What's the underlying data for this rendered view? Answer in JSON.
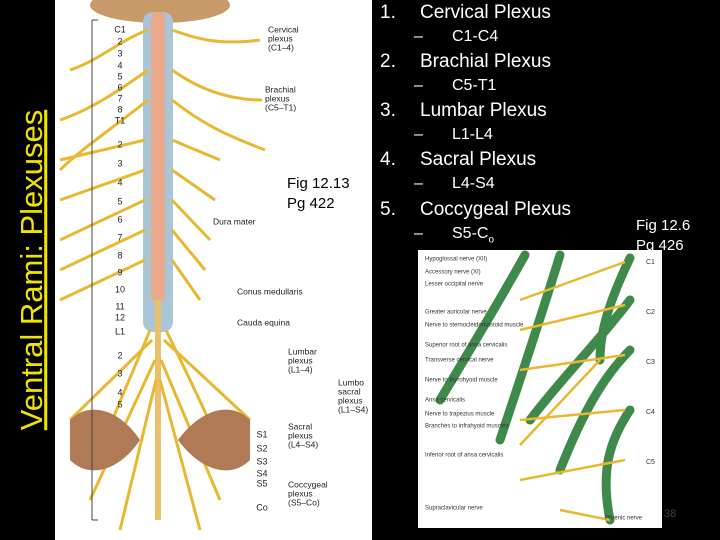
{
  "title": "Ventral Rami: Plexuses",
  "plexuses": [
    {
      "number": "1.",
      "name": "Cervical Plexus",
      "dash": "–",
      "range": "C1-C4"
    },
    {
      "number": "2.",
      "name": "Brachial Plexus",
      "dash": "–",
      "range": "C5-T1"
    },
    {
      "number": "3.",
      "name": "Lumbar Plexus",
      "dash": "–",
      "range": "L1-L4"
    },
    {
      "number": "4.",
      "name": "Sacral Plexus",
      "dash": "–",
      "range": "L4-S4"
    },
    {
      "number": "5.",
      "name": "Coccygeal Plexus",
      "dash": "–",
      "range": "S5-C",
      "range_subscript": "o"
    }
  ],
  "figures": [
    {
      "caption": "Fig 12.13",
      "page": "Pg 422"
    },
    {
      "caption": "Fig 12.6",
      "page": "Pg 426"
    }
  ],
  "left_image": {
    "vertebrae": [
      "C1",
      "2",
      "3",
      "4",
      "5",
      "6",
      "7",
      "8",
      "T1",
      "2",
      "3",
      "4",
      "5",
      "6",
      "7",
      "8",
      "9",
      "10",
      "11",
      "12",
      "L1",
      "2",
      "3",
      "4",
      "5",
      "S1",
      "S2",
      "S3",
      "S4",
      "S5",
      "Co"
    ],
    "labels": [
      [
        "Cervical",
        "plexus",
        "(C1–4)"
      ],
      [
        "Brachial",
        "plexus",
        "(C5–T1)"
      ],
      [
        "Dura mater"
      ],
      [
        "Conus medullaris"
      ],
      [
        "Cauda equina"
      ],
      [
        "Lumbar",
        "plexus",
        "(L1–4)"
      ],
      [
        "Lumbo",
        "sacral",
        "plexus",
        "(L1–S4)"
      ],
      [
        "Sacral",
        "plexus",
        "(L4–S4)"
      ],
      [
        "Coccygeal",
        "plexus",
        "(S5–Co)"
      ]
    ]
  },
  "right_image": {
    "levels": [
      "C1",
      "C2",
      "C3",
      "C4",
      "C5"
    ],
    "labels": [
      "Hypoglossal nerve (XII)",
      "Accessory nerve (XI)",
      "Lesser occipital nerve",
      "Greater auricular nerve",
      "Nerve to sternocleidomastoid muscle",
      "Superior root of ansa cervicalis",
      "Transverse cervical nerve",
      "Nerve to thyrohyoid muscle",
      "Ansa cervicalis",
      "Nerve to trapezius muscle",
      "Branches to infrahyoid muscles",
      "Inferior root of ansa cervicalis",
      "Supraclavicular nerve",
      "Phrenic nerve"
    ]
  },
  "slide_number": "38"
}
